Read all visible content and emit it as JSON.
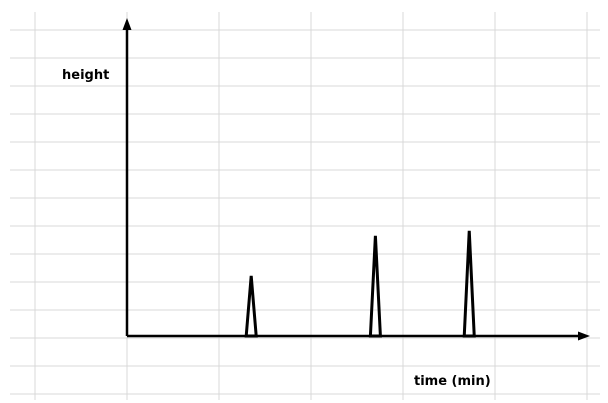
{
  "colors": {
    "background": "#ffffff",
    "grid": "#d9d9d9",
    "axis": "#000000",
    "peak": "#000000"
  },
  "chart_data": {
    "type": "line",
    "title": "",
    "xlabel": "time (min)",
    "ylabel": "height",
    "grid": true,
    "legend": "none",
    "xlim": [
      0,
      5
    ],
    "ylim": [
      0,
      12
    ],
    "peaks": [
      {
        "x": 1.35,
        "height": 3.6
      },
      {
        "x": 2.7,
        "height": 6.0
      },
      {
        "x": 3.72,
        "height": 6.3
      }
    ]
  }
}
